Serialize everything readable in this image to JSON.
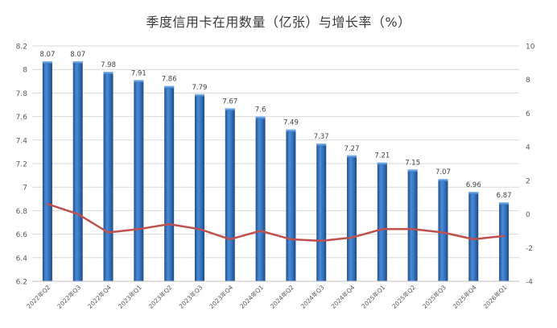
{
  "chart_data": {
    "type": "bar",
    "title": "季度信用卡在用数量（亿张）与增长率（%）",
    "categories": [
      "2022年Q2",
      "2022年Q3",
      "2022年Q4",
      "2023年Q1",
      "2023年Q2",
      "2023年Q3",
      "2023年Q4",
      "2024年Q1",
      "2024年Q2",
      "2024年Q3",
      "2024年Q4",
      "2025年Q1",
      "2025年Q2",
      "2025年Q3",
      "2025年Q4",
      "2026年Q1"
    ],
    "series": [
      {
        "name": "",
        "chart_type": "bar",
        "axis": "left",
        "values": [
          8.07,
          8.07,
          7.98,
          7.91,
          7.86,
          7.79,
          7.67,
          7.6,
          7.49,
          7.37,
          7.27,
          7.21,
          7.15,
          7.07,
          6.96,
          6.87
        ],
        "data_labels": [
          "8.07",
          "8.07",
          "7.98",
          "7.91",
          "7.86",
          "7.79",
          "7.67",
          "7.6",
          "7.49",
          "7.37",
          "7.27",
          "7.21",
          "7.15",
          "7.07",
          "6.96",
          "6.87"
        ],
        "color": "#2e6fbd"
      },
      {
        "name": "",
        "chart_type": "line",
        "axis": "right",
        "values": [
          0.6,
          0.0,
          -1.1,
          -0.9,
          -0.6,
          -0.9,
          -1.5,
          -1.0,
          -1.5,
          -1.6,
          -1.4,
          -0.9,
          -0.9,
          -1.1,
          -1.5,
          -1.3
        ],
        "color": "#c0504d"
      }
    ],
    "ylim_left": [
      6.2,
      8.2
    ],
    "yticks_left": [
      "6.2",
      "6.4",
      "6.6",
      "6.8",
      "7",
      "7.2",
      "7.4",
      "7.6",
      "7.8",
      "8",
      "8.2"
    ],
    "ylim_right": [
      -4,
      10
    ],
    "yticks_right": [
      "-4",
      "-2",
      "0",
      "2",
      "4",
      "6",
      "8",
      "10"
    ],
    "grid": true,
    "legend": "none"
  }
}
